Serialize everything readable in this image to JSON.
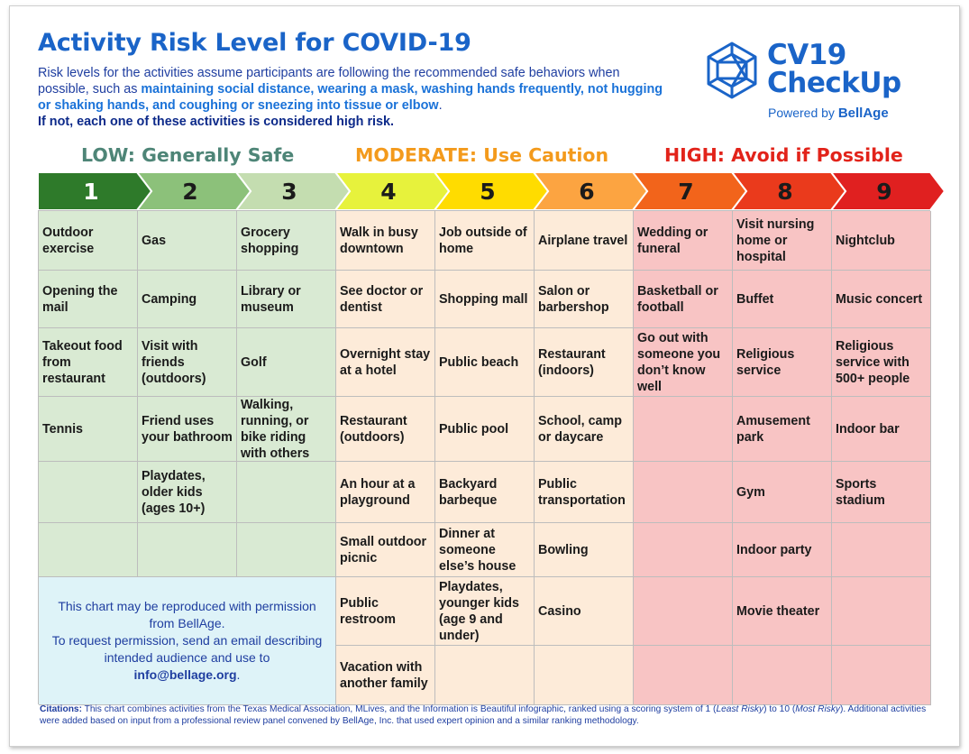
{
  "title": "Activity Risk Level for COVID-19",
  "intro": {
    "part1": "Risk levels for the activities assume participants are following the recommended safe behaviors when possible, such as ",
    "behaviors": "maintaining social distance, wearing a mask, washing hands frequently, not hugging or shaking hands, and coughing or sneezing into tissue or elbow",
    "part2": ".",
    "warning": "If not, each one of these activities is considered high risk."
  },
  "logo": {
    "line1": "CV19",
    "line2": "CheckUp",
    "powered_by": "Powered by",
    "brand": "BellAge",
    "icon": "snowflake-network-icon"
  },
  "bands": {
    "low": "LOW: Generally Safe",
    "moderate": "MODERATE: Use Caution",
    "high": "HIGH: Avoid if Possible"
  },
  "levels": [
    {
      "num": "1",
      "color": "#2e7a2a",
      "text_color": "#ffffff"
    },
    {
      "num": "2",
      "color": "#8cc17a",
      "text_color": "#1b1b1b"
    },
    {
      "num": "3",
      "color": "#c4ddb0",
      "text_color": "#1b1b1b"
    },
    {
      "num": "4",
      "color": "#e7f23c",
      "text_color": "#1b1b1b"
    },
    {
      "num": "5",
      "color": "#ffdc00",
      "text_color": "#1b1b1b"
    },
    {
      "num": "6",
      "color": "#fca441",
      "text_color": "#1b1b1b"
    },
    {
      "num": "7",
      "color": "#f2641b",
      "text_color": "#1b1b1b"
    },
    {
      "num": "8",
      "color": "#ea3a1c",
      "text_color": "#1b1b1b"
    },
    {
      "num": "9",
      "color": "#e02020",
      "text_color": "#1b1b1b"
    }
  ],
  "columns": [
    [
      "Outdoor exercise",
      "Opening the mail",
      "Takeout food from restaurant",
      "Tennis",
      "",
      ""
    ],
    [
      "Gas",
      "Camping",
      "Visit with friends (outdoors)",
      "Friend uses your bathroom",
      "Playdates, older kids (ages 10+)",
      ""
    ],
    [
      "Grocery shopping",
      "Library or museum",
      "Golf",
      "Walking, running, or bike riding with others",
      "",
      ""
    ],
    [
      "Walk in busy downtown",
      "See doctor or dentist",
      "Overnight stay at a hotel",
      "Restaurant (outdoors)",
      "An hour at a playground",
      "Small outdoor picnic",
      "Public restroom",
      "Vacation with another family"
    ],
    [
      "Job outside of home",
      "Shopping mall",
      "Public beach",
      "Public pool",
      "Backyard barbeque",
      "Dinner at someone else’s house",
      "Playdates, younger kids (age 9 and under)",
      ""
    ],
    [
      "Airplane travel",
      "Salon or barbershop",
      "Restaurant (indoors)",
      "School, camp or daycare",
      "Public transportation",
      "Bowling",
      "Casino",
      ""
    ],
    [
      "Wedding or funeral",
      "Basketball or football",
      "Go out with someone you don’t know well",
      "",
      "",
      "",
      "",
      ""
    ],
    [
      "Visit nursing home or hospital",
      "Buffet",
      "Religious service",
      "Amusement park",
      "Gym",
      "Indoor party",
      "Movie theater",
      ""
    ],
    [
      "Nightclub",
      "Music concert",
      "Religious service with 500+ people",
      "Indoor bar",
      "Sports stadium",
      "",
      "",
      ""
    ]
  ],
  "note": {
    "line1": "This chart may be reproduced with permission from BellAge.",
    "line2": "To request permission, send an email describing intended audience and use to ",
    "email": "info@bellage.org",
    "end": "."
  },
  "citations": {
    "label": "Citations:",
    "text1": " This chart combines activities from the Texas Medical Association, MLives, and the Information is Beautiful infographic, ranked using a scoring system of 1 (",
    "least": "Least Risky",
    "text2": ") to 10 (",
    "most": "Most Risky",
    "text3": "). Additional activities were added based on input from a professional review panel convened by BellAge, Inc. that used expert opinion and a similar ranking methodology."
  }
}
